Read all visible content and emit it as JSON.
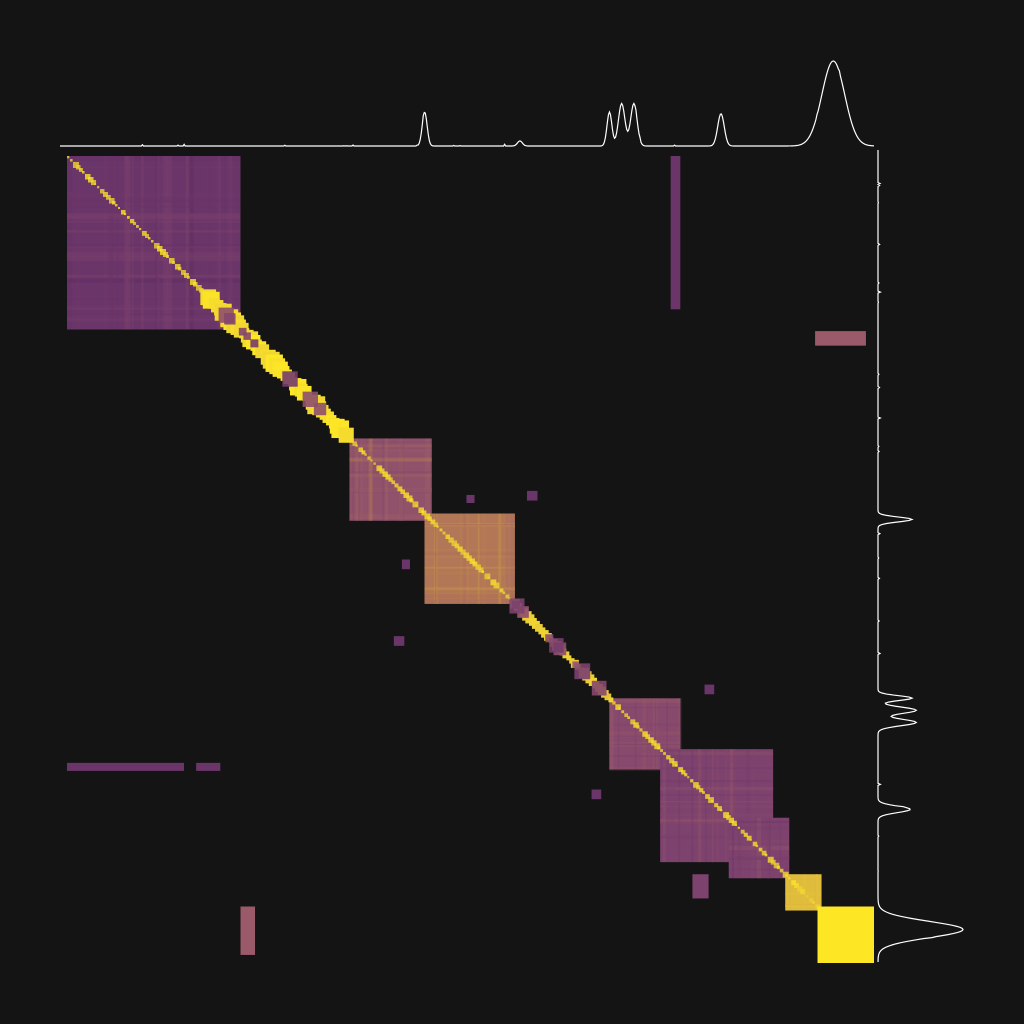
{
  "chart_data": {
    "type": "heatmap",
    "description_visible_text": "",
    "colormap": [
      "#3b1a46",
      "#5a2a63",
      "#7a3f6e",
      "#9a5a6a",
      "#c28a4a",
      "#e8c93a",
      "#fde725"
    ],
    "background_color": "#141414",
    "marginal_color": "#ffffff",
    "matrix_size": 1000,
    "blocks": [
      {
        "name": "block-1",
        "start": 0,
        "end": 215,
        "value": 0.25,
        "texture": true
      },
      {
        "name": "block-2",
        "start": 350,
        "end": 452,
        "value": 0.45,
        "texture": true
      },
      {
        "name": "block-3",
        "start": 443,
        "end": 555,
        "value": 0.6,
        "texture": true
      },
      {
        "name": "block-4",
        "start": 672,
        "end": 760,
        "value": 0.4,
        "texture": true
      },
      {
        "name": "block-5",
        "start": 735,
        "end": 875,
        "value": 0.35,
        "texture": true
      },
      {
        "name": "block-6",
        "start": 820,
        "end": 895,
        "value": 0.35,
        "texture": true
      },
      {
        "name": "block-7",
        "start": 890,
        "end": 935,
        "value": 0.8,
        "texture": true
      },
      {
        "name": "block-8",
        "start": 930,
        "end": 1000,
        "value": 1.0,
        "texture": false
      }
    ],
    "diagonal_segments": [
      {
        "start": 175,
        "end": 350,
        "value": 1.0,
        "width": 14
      },
      {
        "start": 555,
        "end": 680,
        "value": 0.9,
        "width": 8
      }
    ],
    "offdiagonal_patches": [
      {
        "row_start": 0,
        "row_end": 190,
        "col_start": 748,
        "col_end": 760,
        "value": 0.25
      },
      {
        "row_start": 217,
        "row_end": 235,
        "col_start": 927,
        "col_end": 990,
        "value": 0.5
      },
      {
        "row_start": 752,
        "row_end": 762,
        "col_start": 0,
        "col_end": 145,
        "value": 0.25
      },
      {
        "row_start": 752,
        "row_end": 762,
        "col_start": 160,
        "col_end": 190,
        "value": 0.25
      },
      {
        "row_start": 930,
        "row_end": 990,
        "col_start": 215,
        "col_end": 233,
        "value": 0.5
      },
      {
        "row_start": 415,
        "row_end": 427,
        "col_start": 570,
        "col_end": 583,
        "value": 0.25
      },
      {
        "row_start": 420,
        "row_end": 430,
        "col_start": 495,
        "col_end": 505,
        "value": 0.25
      },
      {
        "row_start": 595,
        "row_end": 607,
        "col_start": 405,
        "col_end": 418,
        "value": 0.25
      },
      {
        "row_start": 500,
        "row_end": 512,
        "col_start": 415,
        "col_end": 425,
        "value": 0.25
      },
      {
        "row_start": 655,
        "row_end": 667,
        "col_start": 790,
        "col_end": 802,
        "value": 0.25
      },
      {
        "row_start": 785,
        "row_end": 797,
        "col_start": 650,
        "col_end": 662,
        "value": 0.25
      },
      {
        "row_start": 890,
        "row_end": 920,
        "col_start": 775,
        "col_end": 795,
        "value": 0.35
      }
    ],
    "marginal_top": {
      "peaks": [
        {
          "pos": 448,
          "height": 0.4,
          "width": 3
        },
        {
          "pos": 565,
          "height": 0.06,
          "width": 3
        },
        {
          "pos": 675,
          "height": 0.4,
          "width": 3
        },
        {
          "pos": 690,
          "height": 0.5,
          "width": 4
        },
        {
          "pos": 705,
          "height": 0.5,
          "width": 4
        },
        {
          "pos": 812,
          "height": 0.38,
          "width": 4
        },
        {
          "pos": 950,
          "height": 1.0,
          "width": 14
        }
      ]
    },
    "marginal_right": {
      "peaks": [
        {
          "pos": 455,
          "height": 0.4,
          "width": 3
        },
        {
          "pos": 675,
          "height": 0.4,
          "width": 3
        },
        {
          "pos": 690,
          "height": 0.45,
          "width": 4
        },
        {
          "pos": 705,
          "height": 0.45,
          "width": 4
        },
        {
          "pos": 812,
          "height": 0.38,
          "width": 4
        },
        {
          "pos": 960,
          "height": 1.0,
          "width": 10
        }
      ]
    }
  }
}
